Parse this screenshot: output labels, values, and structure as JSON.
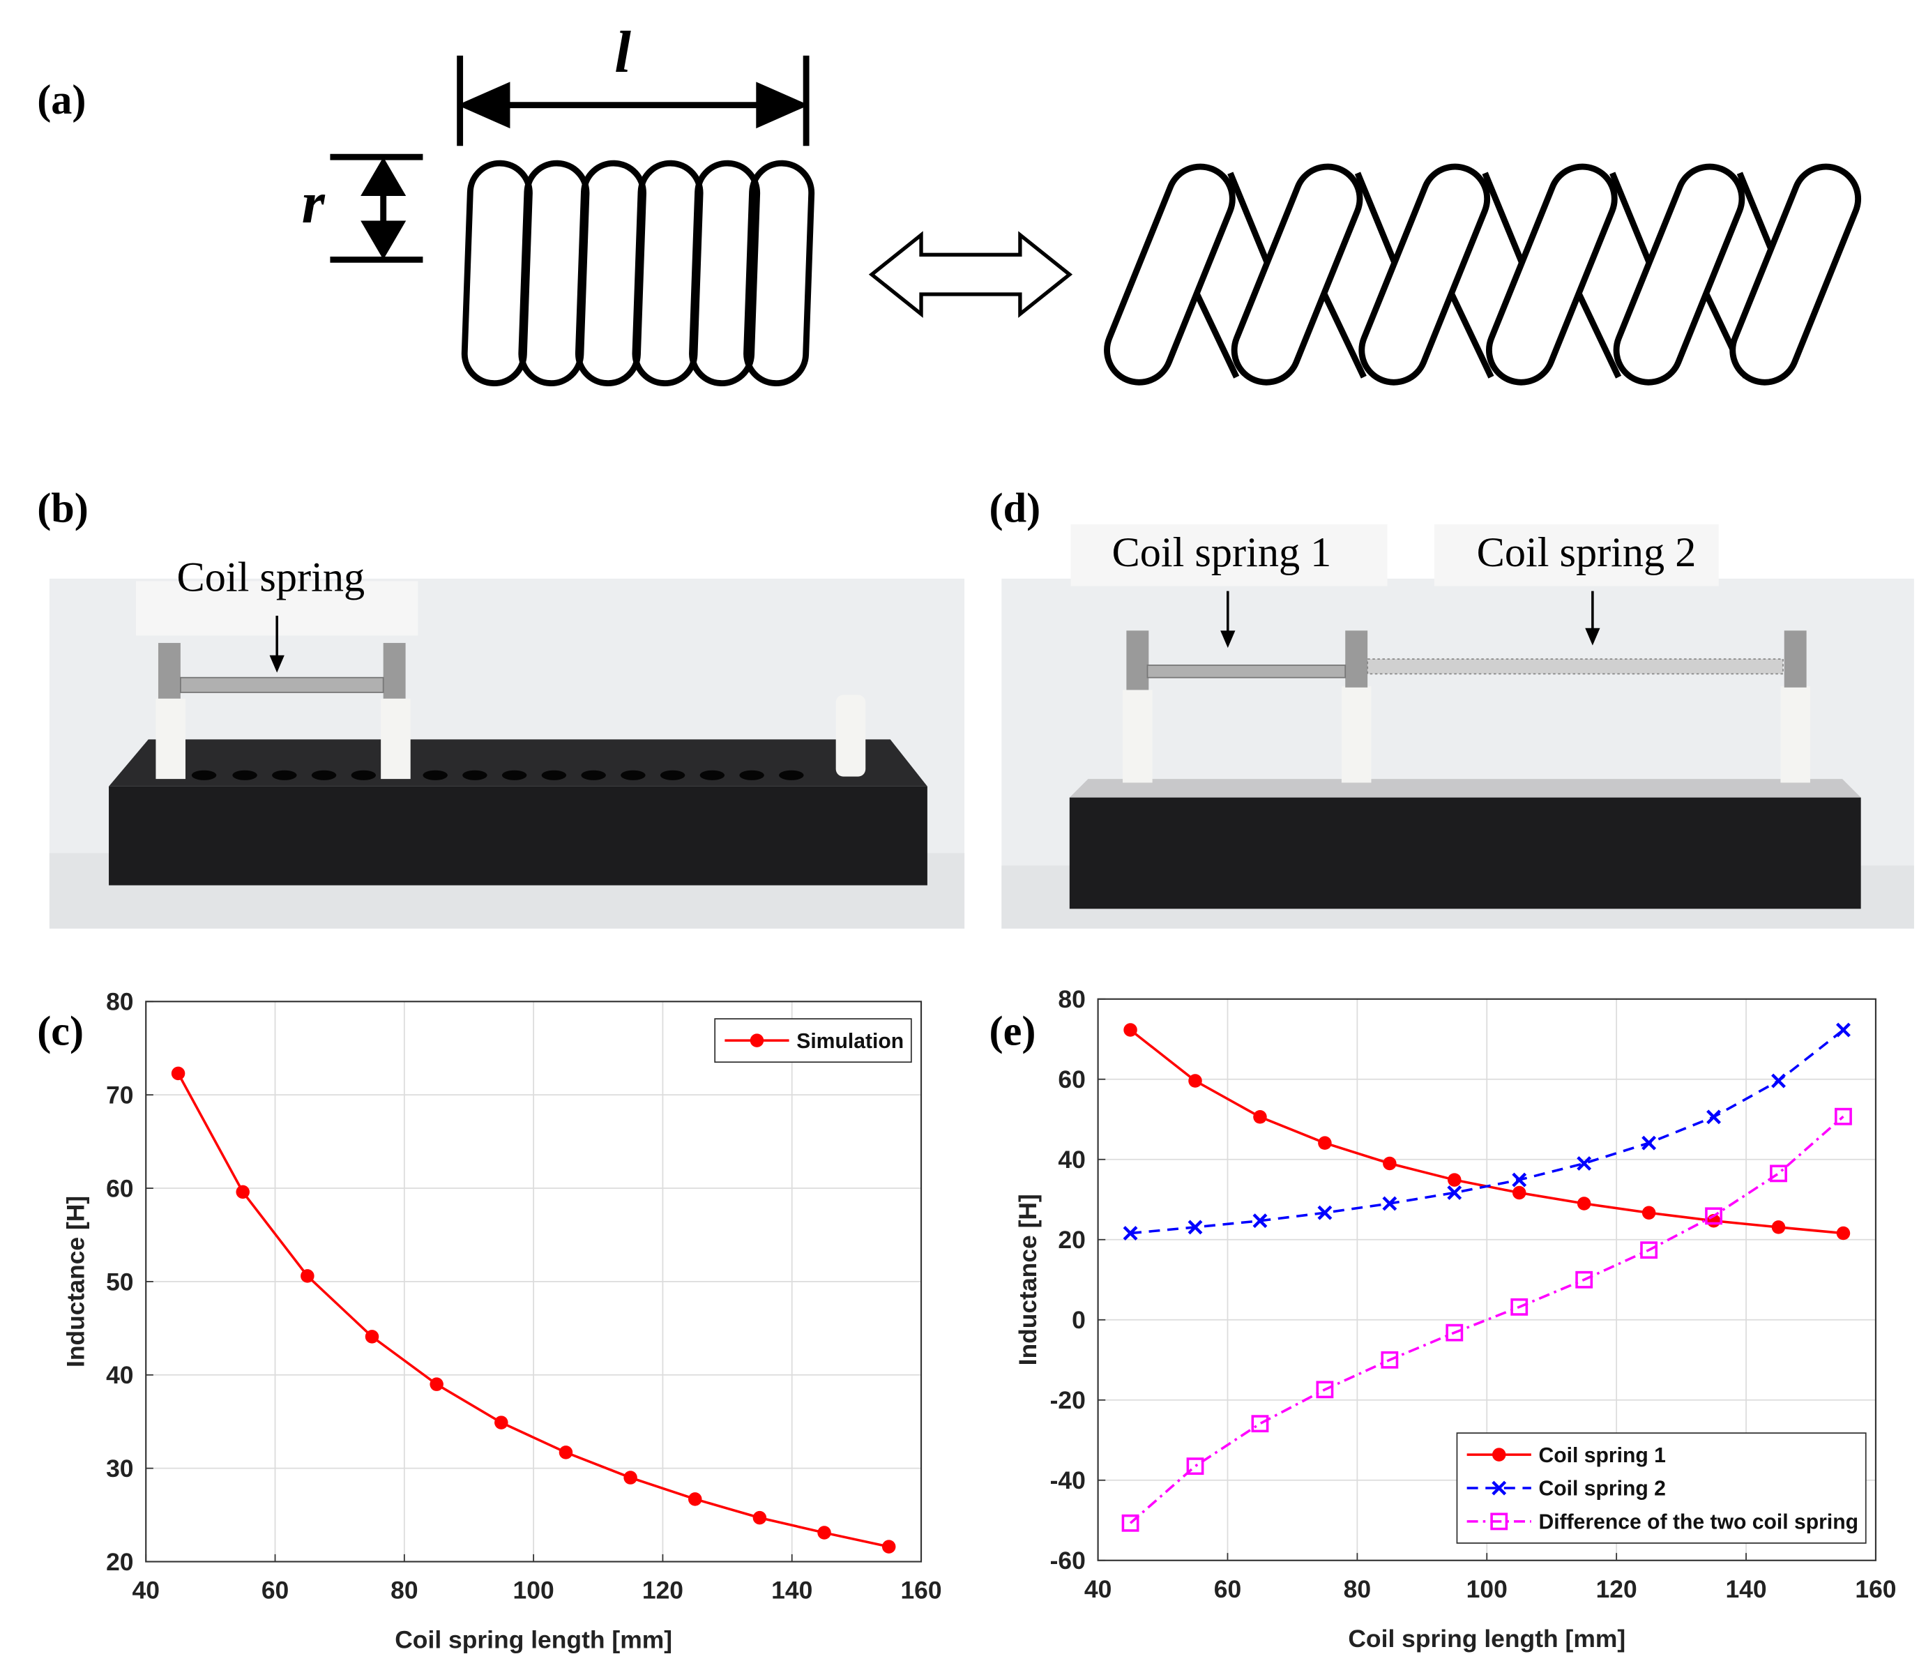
{
  "panels": {
    "a": "(a)",
    "b": "(b)",
    "c": "(c)",
    "d": "(d)",
    "e": "(e)"
  },
  "diagram": {
    "length_label": "l",
    "radius_label": "r"
  },
  "photos": {
    "b_label": "Coil spring",
    "d_label_1": "Coil spring 1",
    "d_label_2": "Coil spring 2"
  },
  "chart_data": [
    {
      "type": "line",
      "xlabel": "Coil spring length [mm]",
      "ylabel": "Inductance [H]",
      "x": [
        45,
        55,
        65,
        75,
        85,
        95,
        105,
        115,
        125,
        135,
        145,
        155
      ],
      "series": [
        {
          "name": "Simulation",
          "color": "#ff0000",
          "marker": "circle",
          "line_style": "solid",
          "values": [
            72.3,
            59.6,
            50.6,
            44.1,
            39.0,
            34.9,
            31.7,
            29.0,
            26.7,
            24.7,
            23.1,
            21.6
          ]
        }
      ],
      "xlim": [
        40,
        160
      ],
      "xticks": [
        40,
        60,
        80,
        100,
        120,
        140,
        160
      ],
      "ylim": [
        20,
        80
      ],
      "yticks": [
        20,
        30,
        40,
        50,
        60,
        70,
        80
      ],
      "grid": true,
      "legend": "upper right"
    },
    {
      "type": "line",
      "xlabel": "Coil spring length [mm]",
      "ylabel": "Inductance [H]",
      "x": [
        45,
        55,
        65,
        75,
        85,
        95,
        105,
        115,
        125,
        135,
        145,
        155
      ],
      "series": [
        {
          "name": "Coil spring 1",
          "color": "#ff0000",
          "marker": "circle",
          "line_style": "solid",
          "values": [
            72.3,
            59.6,
            50.6,
            44.1,
            39.0,
            34.9,
            31.7,
            29.0,
            26.7,
            24.7,
            23.1,
            21.6
          ]
        },
        {
          "name": "Coil spring 2",
          "color": "#0000ff",
          "marker": "x",
          "line_style": "dashed",
          "values": [
            21.6,
            23.1,
            24.7,
            26.7,
            29.0,
            31.7,
            34.9,
            39.0,
            44.1,
            50.6,
            59.6,
            72.3
          ]
        },
        {
          "name": "Difference of the two coil spring",
          "color": "#ff00ff",
          "marker": "square",
          "line_style": "dashdot",
          "values": [
            -50.7,
            -36.5,
            -25.9,
            -17.4,
            -10.0,
            -3.2,
            3.2,
            10.0,
            17.4,
            25.9,
            36.5,
            50.7
          ]
        }
      ],
      "xlim": [
        40,
        160
      ],
      "xticks": [
        40,
        60,
        80,
        100,
        120,
        140,
        160
      ],
      "ylim": [
        -60,
        80
      ],
      "yticks": [
        -60,
        -40,
        -20,
        0,
        20,
        40,
        60,
        80
      ],
      "grid": true,
      "legend": "lower right"
    }
  ]
}
